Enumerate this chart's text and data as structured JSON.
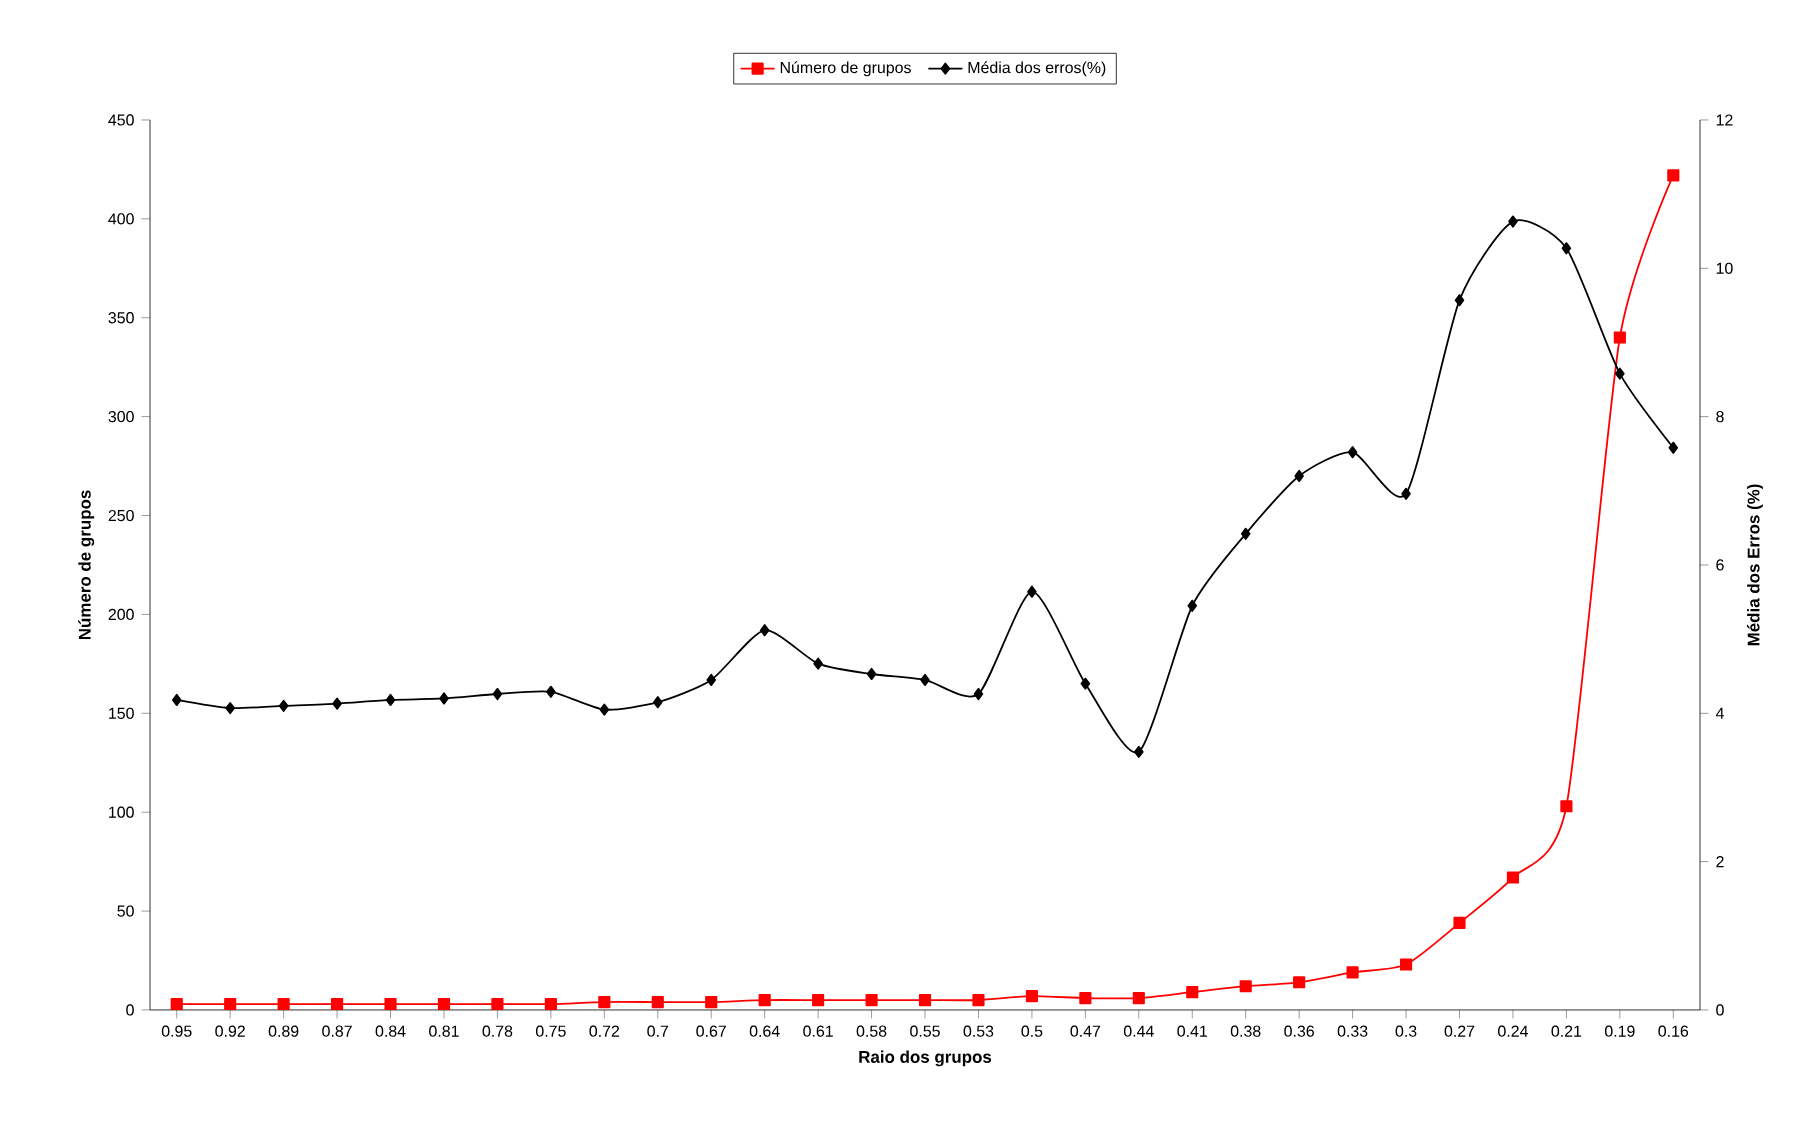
{
  "chart_data": {
    "type": "line",
    "xlabel": "Raio dos grupos",
    "ylabel": "Número de grupos",
    "y2label": "Média dos Erros (%)",
    "categories": [
      "0.95",
      "0.92",
      "0.89",
      "0.87",
      "0.84",
      "0.81",
      "0.78",
      "0.75",
      "0.72",
      "0.7",
      "0.67",
      "0.64",
      "0.61",
      "0.58",
      "0.55",
      "0.53",
      "0.5",
      "0.47",
      "0.44",
      "0.41",
      "0.38",
      "0.36",
      "0.33",
      "0.3",
      "0.27",
      "0.24",
      "0.21",
      "0.19",
      "0.16"
    ],
    "series": [
      {
        "name": "Número de grupos",
        "color": "#ff0000",
        "marker": "square",
        "axis": "y",
        "values": [
          3,
          3,
          3,
          3,
          3,
          3,
          3,
          3,
          4,
          4,
          4,
          5,
          5,
          5,
          5,
          5,
          7,
          6,
          6,
          9,
          12,
          14,
          19,
          23,
          44,
          67,
          103,
          340,
          422
        ]
      },
      {
        "name": "Média dos erros(%)",
        "color": "#000000",
        "marker": "diamond",
        "axis": "y2",
        "values": [
          4.18,
          4.07,
          4.1,
          4.13,
          4.18,
          4.2,
          4.26,
          4.29,
          4.05,
          4.15,
          4.45,
          5.12,
          4.67,
          4.53,
          4.45,
          4.26,
          5.64,
          4.4,
          3.48,
          5.45,
          6.42,
          7.2,
          7.52,
          6.96,
          9.57,
          10.63,
          10.27,
          8.58,
          7.58
        ]
      }
    ],
    "ylim": [
      0,
      450
    ],
    "yticks": [
      0,
      50,
      100,
      150,
      200,
      250,
      300,
      350,
      400,
      450
    ],
    "y2lim": [
      0,
      12
    ],
    "y2ticks": [
      0,
      2,
      4,
      6,
      8,
      10,
      12
    ],
    "line_style": "solid",
    "legend": "top"
  }
}
